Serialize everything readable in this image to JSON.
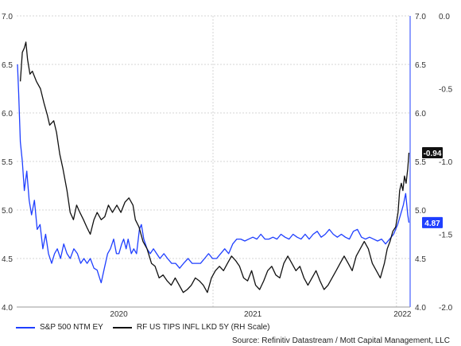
{
  "chart_data": {
    "type": "line",
    "x_ticks": [
      "2020",
      "2021",
      "2022"
    ],
    "y_left_ticks": [
      "4.0",
      "4.5",
      "5.0",
      "5.5",
      "6.0",
      "6.5",
      "7.0"
    ],
    "y_mid_ticks": [
      "4.0",
      "4.5",
      "5.0",
      "5.5",
      "6.0",
      "6.5",
      "7.0"
    ],
    "y_right_ticks": [
      "-2.0",
      "-1.5",
      "-1.0",
      "-0.5",
      "0.0"
    ],
    "ylim_left": [
      4.0,
      7.0
    ],
    "ylim_right": [
      -2.0,
      0.0
    ],
    "grid": true,
    "series": [
      {
        "name": "S&P 500 NTM EY",
        "axis": "left",
        "color": "#1f3fff",
        "last_label": "4.87",
        "points": [
          [
            "2019-06-03",
            6.5
          ],
          [
            "2019-06-06",
            6.2
          ],
          [
            "2019-06-10",
            5.7
          ],
          [
            "2019-06-15",
            5.5
          ],
          [
            "2019-06-20",
            5.2
          ],
          [
            "2019-06-26",
            5.4
          ],
          [
            "2019-07-02",
            5.1
          ],
          [
            "2019-07-08",
            4.95
          ],
          [
            "2019-07-15",
            5.1
          ],
          [
            "2019-07-22",
            4.8
          ],
          [
            "2019-07-29",
            4.85
          ],
          [
            "2019-08-05",
            4.6
          ],
          [
            "2019-08-12",
            4.75
          ],
          [
            "2019-08-19",
            4.55
          ],
          [
            "2019-08-27",
            4.45
          ],
          [
            "2019-09-03",
            4.55
          ],
          [
            "2019-09-10",
            4.6
          ],
          [
            "2019-09-18",
            4.5
          ],
          [
            "2019-09-26",
            4.65
          ],
          [
            "2019-10-04",
            4.55
          ],
          [
            "2019-10-12",
            4.5
          ],
          [
            "2019-10-21",
            4.6
          ],
          [
            "2019-10-30",
            4.55
          ],
          [
            "2019-11-07",
            4.45
          ],
          [
            "2019-11-15",
            4.5
          ],
          [
            "2019-11-23",
            4.45
          ],
          [
            "2019-12-01",
            4.5
          ],
          [
            "2019-12-10",
            4.4
          ],
          [
            "2019-12-18",
            4.38
          ],
          [
            "2019-12-24",
            4.3
          ],
          [
            "2019-12-28",
            4.25
          ],
          [
            "2020-01-05",
            4.4
          ],
          [
            "2020-01-13",
            4.55
          ],
          [
            "2020-01-20",
            4.6
          ],
          [
            "2020-01-28",
            4.7
          ],
          [
            "2020-02-04",
            4.55
          ],
          [
            "2020-02-10",
            4.55
          ],
          [
            "2020-02-17",
            4.65
          ],
          [
            "2020-02-22",
            4.7
          ],
          [
            "2020-02-28",
            4.6
          ],
          [
            "2020-03-04",
            4.7
          ],
          [
            "2020-03-12",
            4.55
          ],
          [
            "2020-03-18",
            4.6
          ],
          [
            "2020-03-25",
            4.55
          ],
          [
            "2020-04-01",
            4.8
          ],
          [
            "2020-04-06",
            4.85
          ],
          [
            "2020-04-12",
            4.7
          ],
          [
            "2020-04-20",
            4.6
          ],
          [
            "2020-04-28",
            4.55
          ],
          [
            "2020-05-06",
            4.6
          ],
          [
            "2020-05-14",
            4.55
          ],
          [
            "2020-05-22",
            4.5
          ],
          [
            "2020-06-01",
            4.55
          ],
          [
            "2020-06-10",
            4.5
          ],
          [
            "2020-06-20",
            4.45
          ],
          [
            "2020-06-30",
            4.45
          ],
          [
            "2020-07-10",
            4.4
          ],
          [
            "2020-07-20",
            4.45
          ],
          [
            "2020-07-31",
            4.5
          ],
          [
            "2020-08-10",
            4.45
          ],
          [
            "2020-08-20",
            4.45
          ],
          [
            "2020-08-31",
            4.45
          ],
          [
            "2020-09-10",
            4.5
          ],
          [
            "2020-09-20",
            4.55
          ],
          [
            "2020-09-30",
            4.5
          ],
          [
            "2020-10-10",
            4.5
          ],
          [
            "2020-10-20",
            4.55
          ],
          [
            "2020-10-30",
            4.6
          ],
          [
            "2020-11-09",
            4.55
          ],
          [
            "2020-11-19",
            4.65
          ],
          [
            "2020-11-29",
            4.7
          ],
          [
            "2020-12-09",
            4.7
          ],
          [
            "2020-12-19",
            4.68
          ],
          [
            "2020-12-29",
            4.7
          ],
          [
            "2021-01-08",
            4.72
          ],
          [
            "2021-01-18",
            4.7
          ],
          [
            "2021-01-28",
            4.75
          ],
          [
            "2021-02-07",
            4.7
          ],
          [
            "2021-02-17",
            4.7
          ],
          [
            "2021-02-27",
            4.72
          ],
          [
            "2021-03-09",
            4.7
          ],
          [
            "2021-03-19",
            4.75
          ],
          [
            "2021-03-29",
            4.72
          ],
          [
            "2021-04-08",
            4.7
          ],
          [
            "2021-04-18",
            4.75
          ],
          [
            "2021-04-28",
            4.72
          ],
          [
            "2021-05-08",
            4.7
          ],
          [
            "2021-05-18",
            4.75
          ],
          [
            "2021-05-28",
            4.7
          ],
          [
            "2021-06-07",
            4.75
          ],
          [
            "2021-06-17",
            4.78
          ],
          [
            "2021-06-27",
            4.72
          ],
          [
            "2021-07-07",
            4.75
          ],
          [
            "2021-07-17",
            4.8
          ],
          [
            "2021-07-27",
            4.75
          ],
          [
            "2021-08-06",
            4.72
          ],
          [
            "2021-08-16",
            4.75
          ],
          [
            "2021-08-26",
            4.72
          ],
          [
            "2021-09-05",
            4.7
          ],
          [
            "2021-09-15",
            4.78
          ],
          [
            "2021-09-25",
            4.8
          ],
          [
            "2021-10-05",
            4.72
          ],
          [
            "2021-10-15",
            4.7
          ],
          [
            "2021-10-25",
            4.72
          ],
          [
            "2021-11-04",
            4.7
          ],
          [
            "2021-11-14",
            4.68
          ],
          [
            "2021-11-24",
            4.7
          ],
          [
            "2021-12-04",
            4.65
          ],
          [
            "2021-12-14",
            4.7
          ],
          [
            "2021-12-24",
            4.75
          ],
          [
            "2022-01-03",
            4.85
          ],
          [
            "2022-01-10",
            4.95
          ],
          [
            "2022-01-17",
            5.05
          ],
          [
            "2022-01-23",
            5.17
          ],
          [
            "2022-01-28",
            4.95
          ],
          [
            "2022-01-31",
            4.87
          ]
        ]
      },
      {
        "name": "RF US TIPS INFL LKD 5Y (RH Scale)",
        "axis": "right",
        "color": "#111111",
        "last_label": "-0.94",
        "points": [
          [
            "2019-06-10",
            -0.45
          ],
          [
            "2019-06-15",
            -0.25
          ],
          [
            "2019-06-20",
            -0.22
          ],
          [
            "2019-06-24",
            -0.18
          ],
          [
            "2019-06-28",
            -0.3
          ],
          [
            "2019-07-04",
            -0.4
          ],
          [
            "2019-07-10",
            -0.38
          ],
          [
            "2019-07-20",
            -0.45
          ],
          [
            "2019-07-30",
            -0.5
          ],
          [
            "2019-08-08",
            -0.6
          ],
          [
            "2019-08-16",
            -0.68
          ],
          [
            "2019-08-22",
            -0.75
          ],
          [
            "2019-09-01",
            -0.72
          ],
          [
            "2019-09-08",
            -0.8
          ],
          [
            "2019-09-16",
            -0.95
          ],
          [
            "2019-09-24",
            -1.05
          ],
          [
            "2019-10-04",
            -1.2
          ],
          [
            "2019-10-12",
            -1.35
          ],
          [
            "2019-10-20",
            -1.4
          ],
          [
            "2019-10-28",
            -1.3
          ],
          [
            "2019-11-05",
            -1.35
          ],
          [
            "2019-11-14",
            -1.4
          ],
          [
            "2019-11-22",
            -1.45
          ],
          [
            "2019-12-01",
            -1.5
          ],
          [
            "2019-12-10",
            -1.4
          ],
          [
            "2019-12-18",
            -1.35
          ],
          [
            "2019-12-28",
            -1.4
          ],
          [
            "2020-01-06",
            -1.38
          ],
          [
            "2020-01-15",
            -1.3
          ],
          [
            "2020-01-25",
            -1.35
          ],
          [
            "2020-02-05",
            -1.3
          ],
          [
            "2020-02-15",
            -1.35
          ],
          [
            "2020-02-25",
            -1.28
          ],
          [
            "2020-03-06",
            -1.25
          ],
          [
            "2020-03-16",
            -1.3
          ],
          [
            "2020-03-22",
            -1.4
          ],
          [
            "2020-03-31",
            -1.45
          ],
          [
            "2020-04-10",
            -1.55
          ],
          [
            "2020-04-20",
            -1.6
          ],
          [
            "2020-05-01",
            -1.7
          ],
          [
            "2020-05-10",
            -1.72
          ],
          [
            "2020-05-20",
            -1.8
          ],
          [
            "2020-05-30",
            -1.78
          ],
          [
            "2020-06-09",
            -1.82
          ],
          [
            "2020-06-19",
            -1.85
          ],
          [
            "2020-06-29",
            -1.8
          ],
          [
            "2020-07-09",
            -1.85
          ],
          [
            "2020-07-19",
            -1.9
          ],
          [
            "2020-07-29",
            -1.88
          ],
          [
            "2020-08-08",
            -1.85
          ],
          [
            "2020-08-18",
            -1.8
          ],
          [
            "2020-08-28",
            -1.82
          ],
          [
            "2020-09-07",
            -1.85
          ],
          [
            "2020-09-17",
            -1.9
          ],
          [
            "2020-09-27",
            -1.8
          ],
          [
            "2020-10-07",
            -1.75
          ],
          [
            "2020-10-17",
            -1.72
          ],
          [
            "2020-10-27",
            -1.75
          ],
          [
            "2020-11-06",
            -1.7
          ],
          [
            "2020-11-16",
            -1.65
          ],
          [
            "2020-11-26",
            -1.68
          ],
          [
            "2020-12-06",
            -1.72
          ],
          [
            "2020-12-16",
            -1.8
          ],
          [
            "2020-12-26",
            -1.82
          ],
          [
            "2021-01-05",
            -1.75
          ],
          [
            "2021-01-15",
            -1.85
          ],
          [
            "2021-01-25",
            -1.88
          ],
          [
            "2021-02-04",
            -1.82
          ],
          [
            "2021-02-14",
            -1.75
          ],
          [
            "2021-02-24",
            -1.72
          ],
          [
            "2021-03-06",
            -1.78
          ],
          [
            "2021-03-16",
            -1.8
          ],
          [
            "2021-03-26",
            -1.7
          ],
          [
            "2021-04-05",
            -1.65
          ],
          [
            "2021-04-15",
            -1.7
          ],
          [
            "2021-04-25",
            -1.75
          ],
          [
            "2021-05-05",
            -1.72
          ],
          [
            "2021-05-15",
            -1.8
          ],
          [
            "2021-05-25",
            -1.85
          ],
          [
            "2021-06-04",
            -1.8
          ],
          [
            "2021-06-14",
            -1.75
          ],
          [
            "2021-06-24",
            -1.82
          ],
          [
            "2021-07-04",
            -1.88
          ],
          [
            "2021-07-14",
            -1.85
          ],
          [
            "2021-07-24",
            -1.8
          ],
          [
            "2021-08-03",
            -1.75
          ],
          [
            "2021-08-13",
            -1.7
          ],
          [
            "2021-08-23",
            -1.65
          ],
          [
            "2021-09-02",
            -1.7
          ],
          [
            "2021-09-12",
            -1.75
          ],
          [
            "2021-09-22",
            -1.65
          ],
          [
            "2021-10-02",
            -1.6
          ],
          [
            "2021-10-12",
            -1.55
          ],
          [
            "2021-10-22",
            -1.6
          ],
          [
            "2021-11-01",
            -1.7
          ],
          [
            "2021-11-11",
            -1.75
          ],
          [
            "2021-11-21",
            -1.8
          ],
          [
            "2021-12-01",
            -1.7
          ],
          [
            "2021-12-08",
            -1.6
          ],
          [
            "2021-12-15",
            -1.55
          ],
          [
            "2021-12-22",
            -1.48
          ],
          [
            "2021-12-29",
            -1.45
          ],
          [
            "2022-01-04",
            -1.35
          ],
          [
            "2022-01-08",
            -1.2
          ],
          [
            "2022-01-12",
            -1.15
          ],
          [
            "2022-01-16",
            -1.2
          ],
          [
            "2022-01-20",
            -1.1
          ],
          [
            "2022-01-24",
            -1.15
          ],
          [
            "2022-01-28",
            -1.05
          ],
          [
            "2022-01-31",
            -0.94
          ]
        ]
      }
    ]
  },
  "legend": {
    "blue_label": "S&P 500 NTM EY",
    "black_label": "RF US TIPS INFL LKD 5Y (RH Scale)"
  },
  "source": "Source: Refinitiv Datastream / Mott Capital Management, LLC",
  "colors": {
    "blue": "#1f3fff",
    "black": "#111111",
    "grid": "#d4d4d4"
  }
}
